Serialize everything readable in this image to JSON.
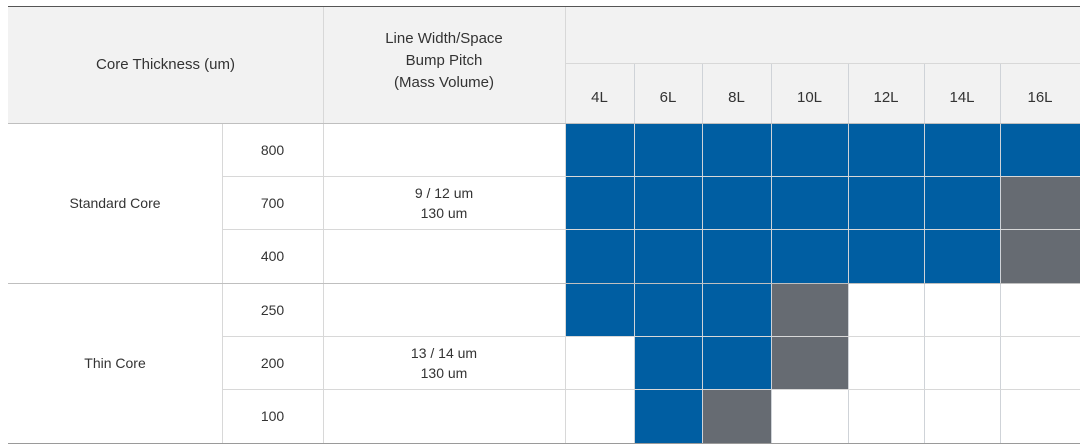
{
  "header": {
    "core_thickness": "Core Thickness (um)",
    "lws_lines": [
      "Line Width/Space",
      "Bump Pitch",
      "(Mass Volume)"
    ]
  },
  "layers": [
    "4L",
    "6L",
    "8L",
    "10L",
    "12L",
    "14L",
    "16L"
  ],
  "groups": [
    {
      "name": "Standard Core",
      "spec": [
        "9 / 12 um",
        "130 um"
      ],
      "rows": [
        {
          "thickness": "800",
          "cells": [
            "blue",
            "blue",
            "blue",
            "blue",
            "blue",
            "blue",
            "blue"
          ]
        },
        {
          "thickness": "700",
          "cells": [
            "blue",
            "blue",
            "blue",
            "blue",
            "blue",
            "blue",
            "gray"
          ]
        },
        {
          "thickness": "400",
          "cells": [
            "blue",
            "blue",
            "blue",
            "blue",
            "blue",
            "blue",
            "gray"
          ]
        }
      ]
    },
    {
      "name": "Thin Core",
      "spec": [
        "13 / 14 um",
        "130 um"
      ],
      "rows": [
        {
          "thickness": "250",
          "cells": [
            "blue",
            "blue",
            "blue",
            "gray",
            "none",
            "none",
            "none"
          ]
        },
        {
          "thickness": "200",
          "cells": [
            "none",
            "blue",
            "blue",
            "gray",
            "none",
            "none",
            "none"
          ]
        },
        {
          "thickness": "100",
          "cells": [
            "none",
            "blue",
            "gray",
            "none",
            "none",
            "none",
            "none"
          ]
        }
      ]
    }
  ],
  "colors": {
    "blue": "#005ea2",
    "gray": "#666b72",
    "header_bg": "#f2f2f2"
  }
}
